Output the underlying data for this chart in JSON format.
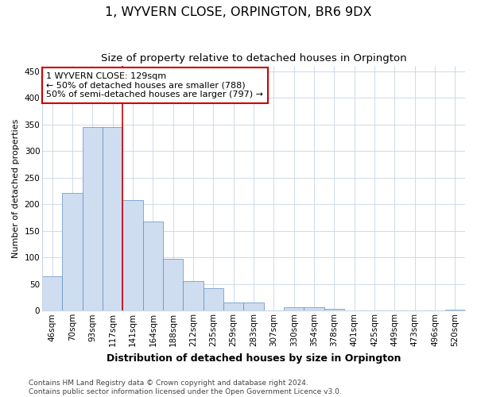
{
  "title": "1, WYVERN CLOSE, ORPINGTON, BR6 9DX",
  "subtitle": "Size of property relative to detached houses in Orpington",
  "xlabel": "Distribution of detached houses by size in Orpington",
  "ylabel": "Number of detached properties",
  "bar_labels": [
    "46sqm",
    "70sqm",
    "93sqm",
    "117sqm",
    "141sqm",
    "164sqm",
    "188sqm",
    "212sqm",
    "235sqm",
    "259sqm",
    "283sqm",
    "307sqm",
    "330sqm",
    "354sqm",
    "378sqm",
    "401sqm",
    "425sqm",
    "449sqm",
    "473sqm",
    "496sqm",
    "520sqm"
  ],
  "bar_values": [
    65,
    222,
    345,
    345,
    208,
    167,
    97,
    56,
    42,
    15,
    15,
    0,
    7,
    7,
    4,
    0,
    0,
    0,
    0,
    0,
    2
  ],
  "bar_color": "#cfddf0",
  "bar_edge_color": "#5b8ec4",
  "plot_bg_color": "#ffffff",
  "fig_bg_color": "#ffffff",
  "grid_color": "#c8d4e4",
  "annotation_text": "1 WYVERN CLOSE: 129sqm\n← 50% of detached houses are smaller (788)\n50% of semi-detached houses are larger (797) →",
  "vline_x": 3.5,
  "vline_color": "#cc0000",
  "annotation_box_edge": "#cc0000",
  "ylim": [
    0,
    460
  ],
  "yticks": [
    0,
    50,
    100,
    150,
    200,
    250,
    300,
    350,
    400,
    450
  ],
  "footer_line1": "Contains HM Land Registry data © Crown copyright and database right 2024.",
  "footer_line2": "Contains public sector information licensed under the Open Government Licence v3.0.",
  "title_fontsize": 11.5,
  "subtitle_fontsize": 9.5,
  "xlabel_fontsize": 9,
  "ylabel_fontsize": 8,
  "tick_fontsize": 7.5,
  "annotation_fontsize": 8,
  "footer_fontsize": 6.5
}
